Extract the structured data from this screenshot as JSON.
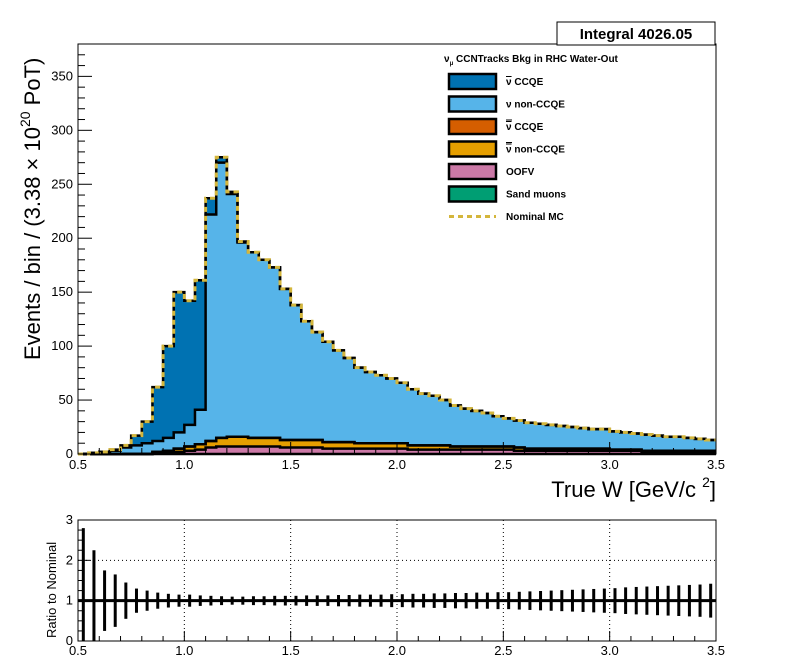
{
  "stats_box": {
    "text": "Integral 4026.05"
  },
  "legend": {
    "title": "ν",
    "title_sub": "μ",
    "title_rest": " CCNTracks Bkg in RHC Water-Out",
    "entries": [
      {
        "label_pre": "",
        "label_bar": "ν",
        "label_post": " CCQE",
        "color": "#0072b2",
        "style": "box"
      },
      {
        "label_pre": "ν",
        "label_bar": "",
        "label_post": " non-CCQE",
        "color": "#56b4e9",
        "style": "box"
      },
      {
        "label_pre": "",
        "label_bar": "ν",
        "label_post": " CCQE",
        "color": "#d55e00",
        "style": "box"
      },
      {
        "label_pre": "",
        "label_bar": "ν",
        "label_post": " non-CCQE",
        "color": "#e69f00",
        "style": "box"
      },
      {
        "label_pre": "OOFV",
        "label_bar": "",
        "label_post": "",
        "color": "#cc79a7",
        "style": "box"
      },
      {
        "label_pre": "Sand muons",
        "label_bar": "",
        "label_post": "",
        "color": "#009e73",
        "style": "box"
      },
      {
        "label_pre": "Nominal MC",
        "label_bar": "",
        "label_post": "",
        "color": "#d4b63c",
        "style": "dashed"
      }
    ]
  },
  "main_axes": {
    "xlabel_text": "True W [GeV/c ",
    "xlabel_sup": "2",
    "xlabel_close": "]",
    "ylabel_text": "Events / bin / (3.38  × 10",
    "ylabel_sup": "20",
    "ylabel_close": " PoT)",
    "x_ticks": [
      "0.5",
      "1.0",
      "1.5",
      "2.0",
      "2.5",
      "3.0",
      "3.5"
    ],
    "y_ticks": [
      "0",
      "50",
      "100",
      "150",
      "200",
      "250",
      "300",
      "350"
    ]
  },
  "ratio_axes": {
    "ylabel": "Ratio to Nominal",
    "x_ticks": [
      "0.5",
      "1.0",
      "1.5",
      "2.0",
      "2.5",
      "3.0",
      "3.5"
    ],
    "y_ticks": [
      "0",
      "1",
      "2",
      "3"
    ]
  },
  "chart_data": [
    {
      "type": "area",
      "subtype": "stacked-histogram",
      "xlim": [
        0.5,
        3.5
      ],
      "ylim": [
        0,
        380
      ],
      "bin_width": 0.05,
      "bin_edges_start": 0.5,
      "series": [
        {
          "name": "ν CCQE",
          "color": "#0072b2",
          "values": [
            0,
            0,
            0,
            1,
            2,
            9,
            20,
            50,
            85,
            130,
            115,
            120,
            15,
            5,
            2,
            1,
            0,
            0,
            0,
            0,
            0,
            0,
            0,
            0,
            0,
            0,
            0,
            0,
            0,
            0,
            0,
            0,
            0,
            0,
            0,
            0,
            0,
            0,
            0,
            0,
            0,
            0,
            0,
            0,
            0,
            0,
            0,
            0,
            0,
            0,
            0,
            0,
            0,
            0,
            0,
            0,
            0,
            0,
            0,
            0
          ]
        },
        {
          "name": "ν non-CCQE",
          "color": "#56b4e9",
          "values": [
            0,
            1,
            2,
            3,
            6,
            8,
            10,
            10,
            12,
            15,
            20,
            32,
            210,
            255,
            225,
            180,
            172,
            165,
            158,
            140,
            125,
            110,
            100,
            93,
            85,
            78,
            70,
            66,
            63,
            60,
            56,
            52,
            48,
            46,
            42,
            38,
            35,
            33,
            31,
            28,
            26,
            25,
            24,
            23,
            22,
            21,
            20,
            19,
            18,
            18,
            17,
            16,
            15,
            15,
            14,
            13,
            13,
            12,
            11,
            10
          ]
        },
        {
          "name": "ν̄ CCQE",
          "color": "#d55e00",
          "values": [
            0,
            0,
            0,
            0,
            0,
            0,
            0,
            0,
            0,
            0,
            0,
            0,
            0,
            0,
            0,
            0,
            0,
            0,
            0,
            0,
            0,
            0,
            0,
            0,
            0,
            0,
            0,
            0,
            0,
            0,
            0,
            0,
            0,
            0,
            0,
            0,
            0,
            0,
            0,
            0,
            0,
            0,
            0,
            0,
            0,
            0,
            0,
            0,
            0,
            0,
            0,
            0,
            0,
            0,
            0,
            0,
            0,
            0,
            0,
            0
          ]
        },
        {
          "name": "ν̄ non-CCQE",
          "color": "#e69f00",
          "values": [
            0,
            0,
            0,
            0,
            0,
            0,
            0,
            1,
            2,
            3,
            4,
            5,
            6,
            8,
            9,
            9,
            8,
            8,
            8,
            7,
            7,
            7,
            7,
            6,
            6,
            6,
            5,
            5,
            5,
            5,
            5,
            4,
            4,
            4,
            4,
            3,
            3,
            3,
            3,
            3,
            3,
            3,
            2,
            2,
            2,
            2,
            2,
            2,
            2,
            2,
            1,
            1,
            1,
            1,
            1,
            1,
            1,
            1,
            1,
            1
          ]
        },
        {
          "name": "OOFV",
          "color": "#cc79a7",
          "values": [
            0,
            0,
            0,
            0,
            0,
            0,
            0,
            1,
            1,
            2,
            3,
            4,
            6,
            7,
            7,
            7,
            7,
            7,
            7,
            6,
            6,
            6,
            6,
            5,
            5,
            5,
            5,
            5,
            5,
            5,
            5,
            4,
            4,
            4,
            4,
            4,
            4,
            4,
            4,
            4,
            4,
            3,
            3,
            3,
            3,
            3,
            3,
            3,
            3,
            3,
            3,
            3,
            3,
            2,
            2,
            2,
            2,
            2,
            2,
            2
          ]
        },
        {
          "name": "Sand muons",
          "color": "#009e73",
          "values": [
            0,
            0,
            0,
            0,
            0,
            0,
            0,
            0,
            0,
            0,
            0,
            0,
            0,
            0,
            0,
            0,
            0,
            0,
            0,
            0,
            0,
            0,
            0,
            0,
            0,
            0,
            0,
            0,
            0,
            0,
            0,
            0,
            0,
            0,
            0,
            0,
            0,
            0,
            0,
            0,
            0,
            0,
            0,
            0,
            0,
            0,
            0,
            0,
            0,
            0,
            0,
            0,
            0,
            0,
            0,
            0,
            0,
            0,
            0,
            0
          ]
        }
      ],
      "nominal_name": "Nominal MC"
    },
    {
      "type": "scatter",
      "subtype": "ratio-with-error-bars",
      "xlim": [
        0.5,
        3.5
      ],
      "ylim": [
        0,
        3
      ],
      "reference_line": 1,
      "x": [
        0.55,
        0.6,
        0.65,
        0.7,
        0.75,
        0.8,
        0.85,
        0.9,
        0.95,
        1.0,
        1.05,
        1.1,
        1.15,
        1.2,
        1.25,
        1.3,
        1.35,
        1.4,
        1.45,
        1.5,
        1.55,
        1.6,
        1.65,
        1.7,
        1.75,
        1.8,
        1.85,
        1.9,
        1.95,
        2.0,
        2.05,
        2.1,
        2.15,
        2.2,
        2.25,
        2.3,
        2.35,
        2.4,
        2.45,
        2.5,
        2.55,
        2.6,
        2.65,
        2.7,
        2.75,
        2.8,
        2.85,
        2.9,
        2.95,
        3.0,
        3.05,
        3.1,
        3.15,
        3.2,
        3.25,
        3.3,
        3.35,
        3.4,
        3.45,
        3.5
      ],
      "y": [
        1,
        1,
        1,
        1,
        1,
        1,
        1,
        1,
        1,
        1,
        1,
        1,
        1,
        1,
        1,
        1,
        1,
        1,
        1,
        1,
        1,
        1,
        1,
        1,
        1,
        1,
        1,
        1,
        1,
        1,
        1,
        1,
        1,
        1,
        1,
        1,
        1,
        1,
        1,
        1,
        1,
        1,
        1,
        1,
        1,
        1,
        1,
        1,
        1,
        1,
        1,
        1,
        1,
        1,
        1,
        1,
        1,
        1,
        1,
        1
      ],
      "err": [
        1.8,
        1.25,
        0.75,
        0.65,
        0.45,
        0.3,
        0.25,
        0.2,
        0.17,
        0.15,
        0.15,
        0.13,
        0.12,
        0.11,
        0.1,
        0.1,
        0.11,
        0.11,
        0.12,
        0.12,
        0.12,
        0.13,
        0.13,
        0.13,
        0.14,
        0.14,
        0.15,
        0.15,
        0.15,
        0.16,
        0.16,
        0.17,
        0.17,
        0.18,
        0.18,
        0.19,
        0.19,
        0.2,
        0.2,
        0.21,
        0.21,
        0.22,
        0.23,
        0.24,
        0.25,
        0.26,
        0.27,
        0.28,
        0.29,
        0.3,
        0.31,
        0.33,
        0.34,
        0.35,
        0.36,
        0.37,
        0.38,
        0.39,
        0.4,
        0.42
      ]
    }
  ]
}
